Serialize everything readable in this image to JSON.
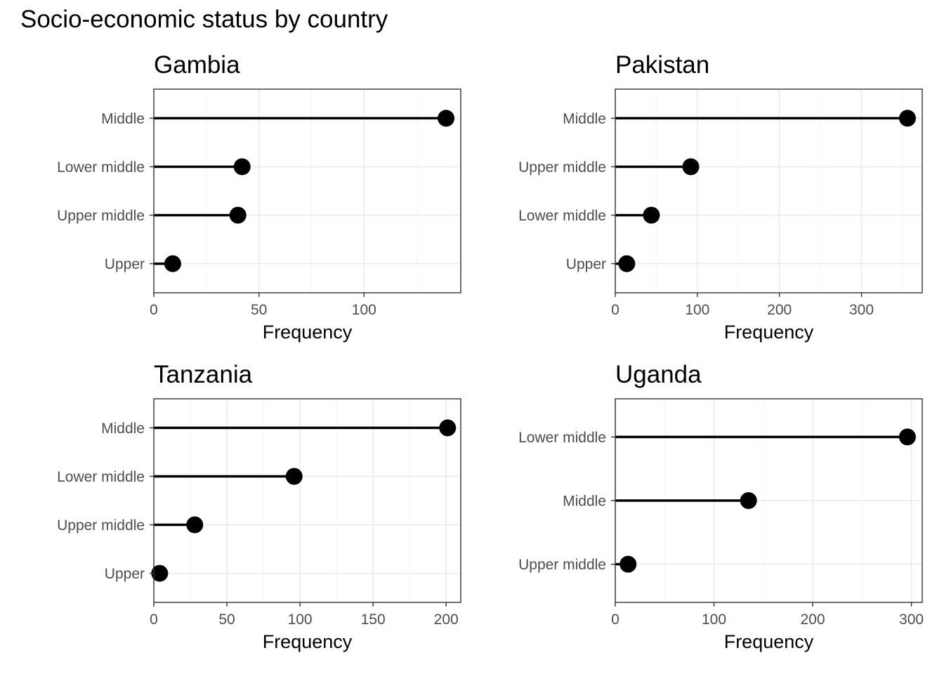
{
  "title": "Socio-economic status by country",
  "chart_data": [
    {
      "type": "lollipop",
      "title": "Gambia",
      "xlabel": "Frequency",
      "ylabel": "",
      "xlim": [
        0,
        146
      ],
      "x_ticks": [
        0,
        50,
        100
      ],
      "x_minor_ticks": [
        25,
        75,
        125
      ],
      "categories": [
        "Middle",
        "Lower middle",
        "Upper middle",
        "Upper"
      ],
      "values": [
        139,
        42,
        40,
        9
      ],
      "grid": true
    },
    {
      "type": "lollipop",
      "title": "Pakistan",
      "xlabel": "Frequency",
      "ylabel": "",
      "xlim": [
        0,
        374
      ],
      "x_ticks": [
        0,
        100,
        200,
        300
      ],
      "x_minor_ticks": [
        50,
        150,
        250,
        350
      ],
      "categories": [
        "Middle",
        "Upper middle",
        "Lower middle",
        "Upper"
      ],
      "values": [
        356,
        92,
        44,
        14
      ],
      "grid": true
    },
    {
      "type": "lollipop",
      "title": "Tanzania",
      "xlabel": "Frequency",
      "ylabel": "",
      "xlim": [
        0,
        210
      ],
      "x_ticks": [
        0,
        50,
        100,
        150,
        200
      ],
      "x_minor_ticks": [
        25,
        75,
        125,
        175
      ],
      "categories": [
        "Middle",
        "Lower middle",
        "Upper middle",
        "Upper"
      ],
      "values": [
        201,
        96,
        28,
        4
      ],
      "grid": true
    },
    {
      "type": "lollipop",
      "title": "Uganda",
      "xlabel": "Frequency",
      "ylabel": "",
      "xlim": [
        0,
        311
      ],
      "x_ticks": [
        0,
        100,
        200,
        300
      ],
      "x_minor_ticks": [
        50,
        150,
        250
      ],
      "categories": [
        "Lower middle",
        "Middle",
        "Upper middle"
      ],
      "values": [
        296,
        135,
        13
      ],
      "grid": true
    }
  ],
  "colors": {
    "point": "#000000",
    "stem": "#000000",
    "grid_major": "#ebebeb",
    "grid_minor": "#f5f5f5",
    "panel_border": "#333333",
    "tick_text": "#4d4d4d"
  }
}
